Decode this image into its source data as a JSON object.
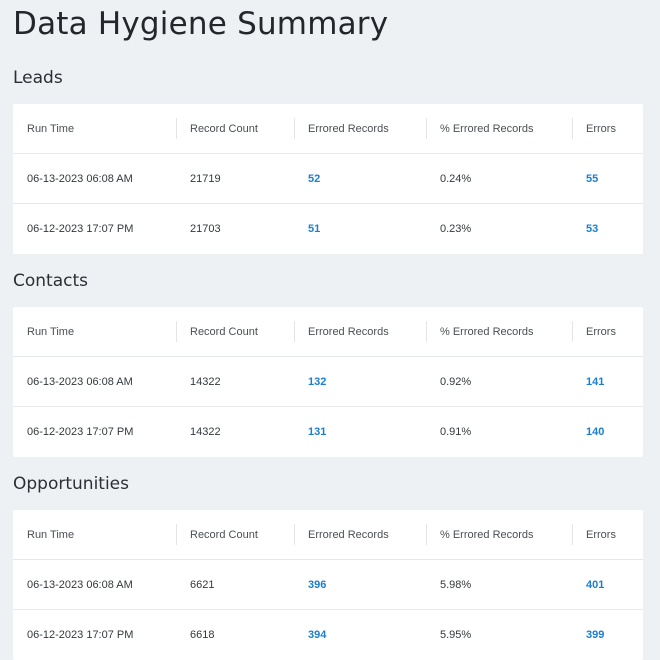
{
  "page_title": "Data Hygiene Summary",
  "columns": [
    "Run Time",
    "Record Count",
    "Errored Records",
    "% Errored Records",
    "Errors"
  ],
  "colors": {
    "link": "#1a7fd0",
    "background": "#eef1f4",
    "card": "#ffffff"
  },
  "sections": [
    {
      "title": "Leads",
      "rows": [
        {
          "run_time": "06-13-2023 06:08 AM",
          "record_count": "21719",
          "errored_records": "52",
          "pct_errored": "0.24%",
          "errors": "55"
        },
        {
          "run_time": "06-12-2023 17:07 PM",
          "record_count": "21703",
          "errored_records": "51",
          "pct_errored": "0.23%",
          "errors": "53"
        }
      ]
    },
    {
      "title": "Contacts",
      "rows": [
        {
          "run_time": "06-13-2023 06:08 AM",
          "record_count": "14322",
          "errored_records": "132",
          "pct_errored": "0.92%",
          "errors": "141"
        },
        {
          "run_time": "06-12-2023 17:07 PM",
          "record_count": "14322",
          "errored_records": "131",
          "pct_errored": "0.91%",
          "errors": "140"
        }
      ]
    },
    {
      "title": "Opportunities",
      "rows": [
        {
          "run_time": "06-13-2023 06:08 AM",
          "record_count": "6621",
          "errored_records": "396",
          "pct_errored": "5.98%",
          "errors": "401"
        },
        {
          "run_time": "06-12-2023 17:07 PM",
          "record_count": "6618",
          "errored_records": "394",
          "pct_errored": "5.95%",
          "errors": "399"
        }
      ]
    }
  ]
}
